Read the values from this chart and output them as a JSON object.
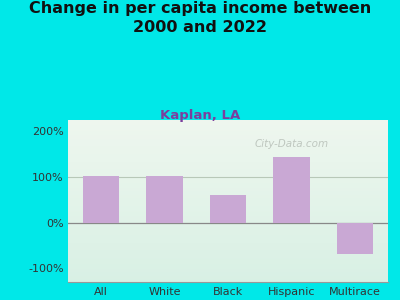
{
  "title": "Change in per capita income between\n2000 and 2022",
  "subtitle": "Kaplan, LA",
  "categories": [
    "All",
    "White",
    "Black",
    "Hispanic",
    "Multirace"
  ],
  "values": [
    103,
    103,
    60,
    143,
    -68
  ],
  "bar_color": "#c9a8d4",
  "title_fontsize": 11.5,
  "subtitle_fontsize": 9.5,
  "subtitle_color": "#7b3f9e",
  "title_color": "#111111",
  "background_color": "#00e8e8",
  "grad_top": "#eef6ee",
  "grad_bottom": "#d8f0e4",
  "xlabel_color": "#333333",
  "ylabel_color": "#333333",
  "ylim": [
    -130,
    225
  ],
  "yticks": [
    -100,
    0,
    100,
    200
  ],
  "ytick_labels": [
    "-100%",
    "0%",
    "100%",
    "200%"
  ],
  "watermark": "City-Data.com"
}
